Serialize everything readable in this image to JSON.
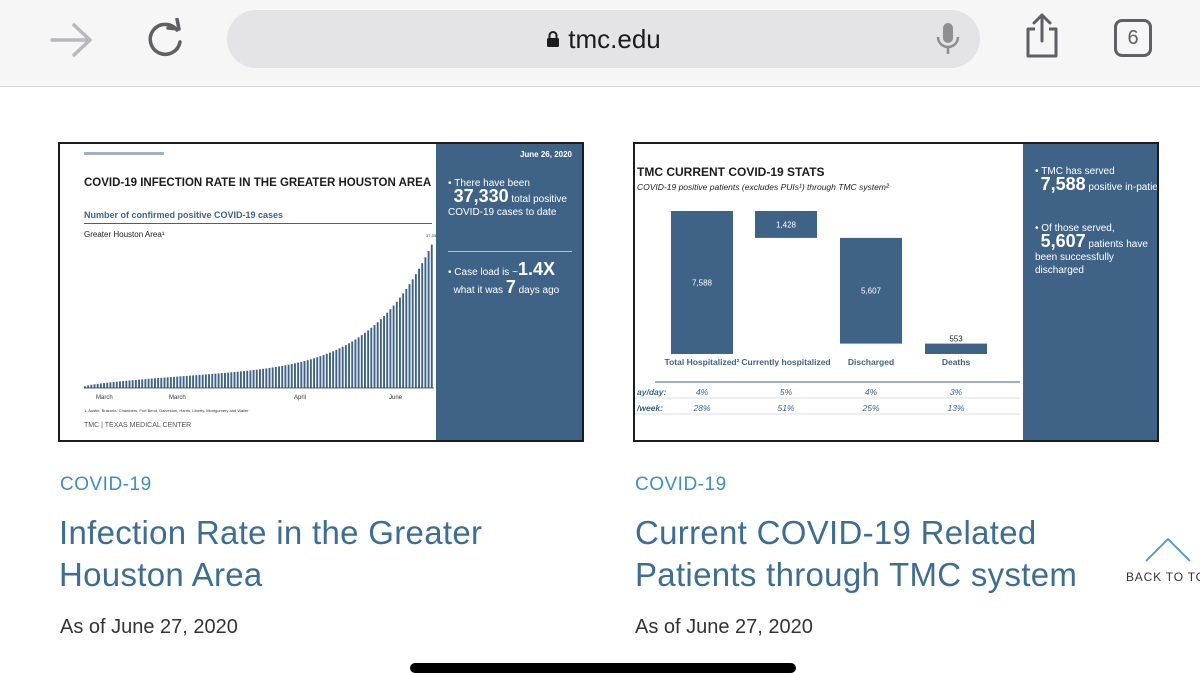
{
  "browser": {
    "url": "tmc.edu",
    "tab_count": "6",
    "icons": {
      "forward": "forward-arrow-icon",
      "reload": "reload-icon",
      "lock": "lock-icon",
      "mic": "microphone-icon",
      "share": "share-icon"
    }
  },
  "cards": [
    {
      "category": "COVID-19",
      "title_line1": "Infection Rate in the Greater",
      "title_line2": "Houston Area",
      "date": "As of June 27, 2020",
      "slide": {
        "date": "June 26, 2020",
        "heading": "COVID-19 INFECTION RATE IN THE GREATER HOUSTON AREA",
        "chart_subtitle": "Number of confirmed positive COVID-19 cases",
        "region": "Greater Houston Area¹",
        "peak_label": "37,330",
        "bullet1_pre": "There have been",
        "bullet1_num": "37,330",
        "bullet1_post": "total positive COVID-19 cases to date",
        "bullet2_pre": "Case load is ~",
        "bullet2_num": "1.4X",
        "bullet2_mid": "what it was",
        "bullet2_num2": "7",
        "bullet2_post": "days ago",
        "months": [
          "March",
          "March",
          "April",
          "June"
        ],
        "footnote": "1. Austin, Brazoria, Chambers, Fort Bend, Galveston, Harris, Liberty, Montgomery and Waller",
        "footer": "TMC | TEXAS MEDICAL CENTER"
      }
    },
    {
      "category": "COVID-19",
      "title_line1": "Current COVID-19 Related",
      "title_line2": "Patients through TMC system",
      "date": "As of June 27, 2020",
      "slide": {
        "heading": "TMC CURRENT COVID-19 STATS",
        "subheading": "COVID-19 positive patients (excludes PUIs¹) through TMC system²",
        "bullet1_pre": "TMC has served",
        "bullet1_num": "7,588",
        "bullet1_post": "positive in-patients to date",
        "bullet2_pre": "Of those served,",
        "bullet2_num": "5,607",
        "bullet2_post": "patients have been successfully discharged",
        "row1_label": "ay/day:",
        "row2_label": "/week:"
      }
    }
  ],
  "back_to_top": "BACK TO TO",
  "chart_data": [
    {
      "type": "bar",
      "title": "COVID-19 INFECTION RATE IN THE GREATER HOUSTON AREA",
      "ylabel": "Number of confirmed positive COVID-19 cases",
      "xlabel": "",
      "x_ticks": [
        "March",
        "March",
        "April",
        "June"
      ],
      "ylim": [
        0,
        38000
      ],
      "max_value": 37330,
      "days": 110
    },
    {
      "type": "bar",
      "title": "TMC CURRENT COVID-19 STATS",
      "categories": [
        "Total Hospitalized²",
        "Currently hospitalized",
        "Discharged",
        "Deaths"
      ],
      "values": [
        7588,
        1428,
        5607,
        553
      ],
      "labels": [
        "7,588",
        "1,428",
        "5,607",
        "553"
      ],
      "day_change": [
        "4%",
        "5%",
        "4%",
        "3%"
      ],
      "week_change": [
        "28%",
        "51%",
        "25%",
        "13%"
      ],
      "ylim": [
        0,
        7588
      ]
    }
  ]
}
